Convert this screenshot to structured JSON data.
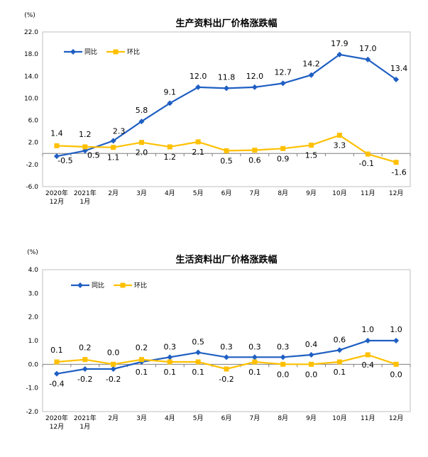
{
  "chart_data": [
    {
      "type": "line",
      "title": "生产资料出厂价格涨跌幅",
      "unit_label": "(%)",
      "ylim": [
        -6.0,
        22.0
      ],
      "yticks": [
        "22.0",
        "18.0",
        "14.0",
        "10.0",
        "6.0",
        "2.0",
        "-2.0",
        "-6.0"
      ],
      "ytick_values": [
        22,
        18,
        14,
        10,
        6,
        2,
        -2,
        -6
      ],
      "categories": [
        [
          "2020年",
          "12月"
        ],
        [
          "2021年",
          "1月"
        ],
        [
          "2月"
        ],
        [
          "3月"
        ],
        [
          "4月"
        ],
        [
          "5月"
        ],
        [
          "6月"
        ],
        [
          "7月"
        ],
        [
          "8月"
        ],
        [
          "9月"
        ],
        [
          "10月"
        ],
        [
          "11月"
        ],
        [
          "12月"
        ]
      ],
      "grid": false,
      "legend_position": "top-left",
      "series": [
        {
          "name": "同比",
          "color": "#1f5fc3",
          "marker": "diamond",
          "values": [
            -0.5,
            0.5,
            2.3,
            5.8,
            9.1,
            12.0,
            11.8,
            12.0,
            12.7,
            14.2,
            17.9,
            17.0,
            13.4
          ],
          "labels": [
            "-0.5",
            "0.5",
            "2.3",
            "5.8",
            "9.1",
            "12.0",
            "11.8",
            "12.0",
            "12.7",
            "14.2",
            "17.9",
            "17.0",
            "13.4"
          ]
        },
        {
          "name": "环比",
          "color": "#ffc000",
          "marker": "square",
          "values": [
            1.4,
            1.2,
            1.1,
            2.0,
            1.2,
            2.1,
            0.5,
            0.6,
            0.9,
            1.5,
            3.3,
            -0.1,
            -1.6
          ],
          "labels": [
            "1.4",
            "1.2",
            "1.1",
            "2.0",
            "1.2",
            "2.1",
            "0.5",
            "0.6",
            "0.9",
            "1.5",
            "3.3",
            "-0.1",
            "-1.6"
          ]
        }
      ]
    },
    {
      "type": "line",
      "title": "生活资料出厂价格涨跌幅",
      "unit_label": "(%)",
      "ylim": [
        -2.0,
        4.0
      ],
      "yticks": [
        "4.0",
        "3.0",
        "2.0",
        "1.0",
        "0.0",
        "-1.0",
        "-2.0"
      ],
      "ytick_values": [
        4,
        3,
        2,
        1,
        0,
        -1,
        -2
      ],
      "categories": [
        [
          "2020年",
          "12月"
        ],
        [
          "2021年",
          "1月"
        ],
        [
          "2月"
        ],
        [
          "3月"
        ],
        [
          "4月"
        ],
        [
          "5月"
        ],
        [
          "6月"
        ],
        [
          "7月"
        ],
        [
          "8月"
        ],
        [
          "9月"
        ],
        [
          "10月"
        ],
        [
          "11月"
        ],
        [
          "12月"
        ]
      ],
      "grid": false,
      "legend_position": "top-left",
      "series": [
        {
          "name": "同比",
          "color": "#1f5fc3",
          "marker": "diamond",
          "values": [
            -0.4,
            -0.2,
            -0.2,
            0.1,
            0.3,
            0.5,
            0.3,
            0.3,
            0.3,
            0.4,
            0.6,
            1.0,
            1.0
          ],
          "labels": [
            "-0.4",
            "-0.2",
            "-0.2",
            "0.1",
            "0.3",
            "0.5",
            "0.3",
            "0.3",
            "0.3",
            "0.4",
            "0.6",
            "1.0",
            "1.0"
          ]
        },
        {
          "name": "环比",
          "color": "#ffc000",
          "marker": "square",
          "values": [
            0.1,
            0.2,
            0.0,
            0.2,
            0.1,
            0.1,
            -0.2,
            0.1,
            0.0,
            0.0,
            0.1,
            0.4,
            0.0
          ],
          "labels": [
            "0.1",
            "0.2",
            "0.0",
            "0.2",
            "0.1",
            "0.1",
            "-0.2",
            "0.1",
            "0.0",
            "0.0",
            "0.1",
            "0.4",
            "0.0"
          ]
        }
      ]
    }
  ]
}
